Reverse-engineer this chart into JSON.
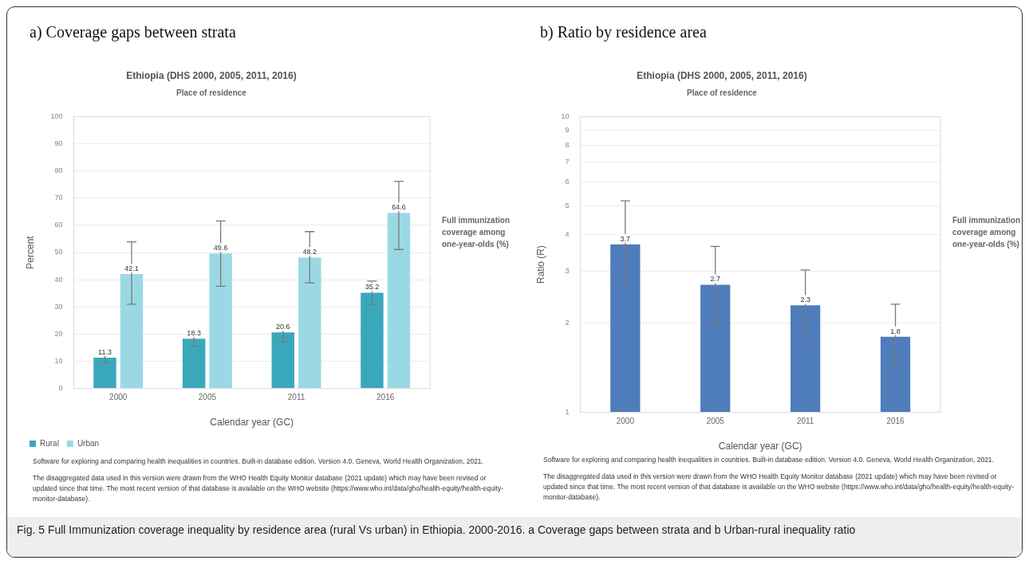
{
  "chart_data": [
    {
      "type": "bar",
      "title": "a) Coverage gaps between strata",
      "subtitle": "Ethiopia (DHS 2000, 2005, 2011, 2016)",
      "xlabel": "Calendar year (GC)",
      "ylabel": "Percent",
      "categories": [
        "2000",
        "2005",
        "2011",
        "2016"
      ],
      "series": [
        {
          "name": "Rural",
          "color": "#3aa8bc",
          "values": [
            11.3,
            18.3,
            20.6,
            35.2
          ],
          "errors": [
            [
              9.3,
              13.2
            ],
            [
              15.6,
              21.6
            ],
            [
              17.2,
              24.1
            ],
            [
              31.0,
              39.5
            ]
          ]
        },
        {
          "name": "Urban",
          "color": "#9ad9e4",
          "values": [
            42.1,
            49.6,
            48.2,
            64.6
          ],
          "errors": [
            [
              31.0,
              53.9
            ],
            [
              37.6,
              61.6
            ],
            [
              38.8,
              57.7
            ],
            [
              51.1,
              76.2
            ]
          ]
        }
      ],
      "ylim": [
        0,
        100
      ],
      "yticks": [
        0,
        10,
        20,
        30,
        40,
        50,
        60,
        70,
        80,
        90,
        100
      ],
      "grid": "y",
      "legend": "bottom",
      "data_labels": true,
      "annotations": [
        "Place of residence",
        "Full immunization coverage among one-year-olds (%)",
        "Software for exploring and comparing health inequalities in countries. Built-in database edition. Version 4.0. Geneva, World Health Organization, 2021.",
        "The disaggregated data used in this version were drawn from the WHO Health Equity Monitor database (2021 update) which may have been revised or updated since that time. The most recent version of that database is available on the WHO website (https://www.who.int/data/gho/health-equity/health-equity-monitor-database)."
      ]
    },
    {
      "type": "bar",
      "title": "b) Ratio by residence area",
      "subtitle": "Ethiopia (DHS 2000, 2005, 2011, 2016)",
      "xlabel": "Calendar year (GC)",
      "ylabel": "Ratio (R)",
      "categories": [
        "2000",
        "2005",
        "2011",
        "2016"
      ],
      "series": [
        {
          "color": "#4f7cba",
          "values": [
            3.7,
            2.7,
            2.3,
            1.8
          ],
          "errors": [
            [
              2.69,
              5.19
            ],
            [
              2.02,
              3.64
            ],
            [
              1.81,
              3.03
            ],
            [
              1.46,
              2.32
            ]
          ]
        }
      ],
      "log": true,
      "ylim": [
        1,
        10
      ],
      "yticks": [
        1,
        2,
        3,
        4,
        5,
        6,
        7,
        8,
        9,
        10
      ],
      "grid": "y",
      "data_labels": true,
      "annotations": [
        "Place of residence",
        "Full immunization coverage among one-year-olds (%)",
        "Software for exploring and comparing health inequalities in countries. Built-in database edition. Version 4.0. Geneva, World Health Organization, 2021.",
        "The disaggregated data used in this version were drawn from the WHO Health Equity Monitor database (2021 update) which may have been revised or updated since that time. The most recent version of that database is available on the WHO website (https://www.who.int/data/gho/health-equity/health-equity-monitor-database).",
        "Fig. 5 Full Immunization coverage inequality by residence area (rural Vs urban) in Ethiopia. 2000-2016. a Coverage gaps between strata and b Urban-rural inequality ratio"
      ]
    }
  ]
}
